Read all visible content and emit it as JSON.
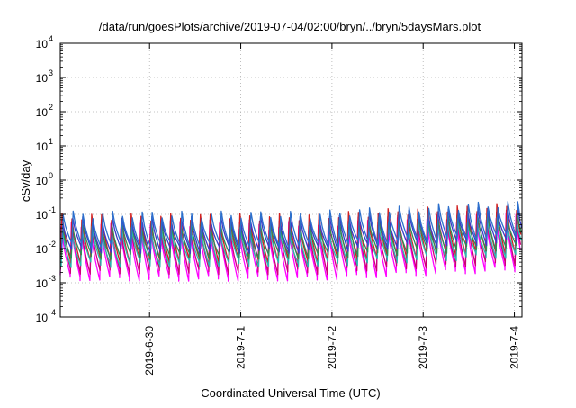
{
  "chart_data": {
    "type": "line",
    "title": "/data/run/goesPlots/archive/2019-07-04/02:00/bryn/../bryn/5daysMars.plot",
    "xlabel": "Coordinated Universal Time (UTC)",
    "ylabel": "cSv/day",
    "y_scale": "log",
    "ylim": [
      0.0001,
      10000
    ],
    "xlim": [
      "2019-06-29T00:30",
      "2019-07-04T02:00"
    ],
    "x_ticks": [
      "2019-6-30",
      "2019-7-1",
      "2019-7-2",
      "2019-7-3",
      "2019-7-4"
    ],
    "y_ticks": [
      {
        "base": "10",
        "exp": "-4"
      },
      {
        "base": "10",
        "exp": "-3"
      },
      {
        "base": "10",
        "exp": "-2"
      },
      {
        "base": "10",
        "exp": "-1"
      },
      {
        "base": "10",
        "exp": "0"
      },
      {
        "base": "10",
        "exp": "1"
      },
      {
        "base": "10",
        "exp": "2"
      },
      {
        "base": "10",
        "exp": "3"
      },
      {
        "base": "10",
        "exp": "4"
      }
    ],
    "grid": true,
    "pattern": {
      "description_free": true,
      "cycle_hours": 2.6,
      "peak_values_start": 0.09,
      "peak_values_end": 0.13,
      "trough_values_start": 0.0015,
      "trough_values_end": 0.01
    },
    "series": [
      {
        "color": "#ff00ff",
        "peak": 0.045,
        "trough": 0.0014
      },
      {
        "color": "#cc0077",
        "peak": 0.055,
        "trough": 0.0022
      },
      {
        "color": "#d11f1f",
        "peak": 0.085,
        "trough": 0.0045
      },
      {
        "color": "#2ab8b0",
        "peak": 0.035,
        "trough": 0.0035
      },
      {
        "color": "#2e8b57",
        "peak": 0.05,
        "trough": 0.006
      },
      {
        "color": "#3a3ac8",
        "peak": 0.07,
        "trough": 0.009
      },
      {
        "color": "#2c6fcc",
        "peak": 0.1,
        "trough": 0.012
      }
    ]
  }
}
